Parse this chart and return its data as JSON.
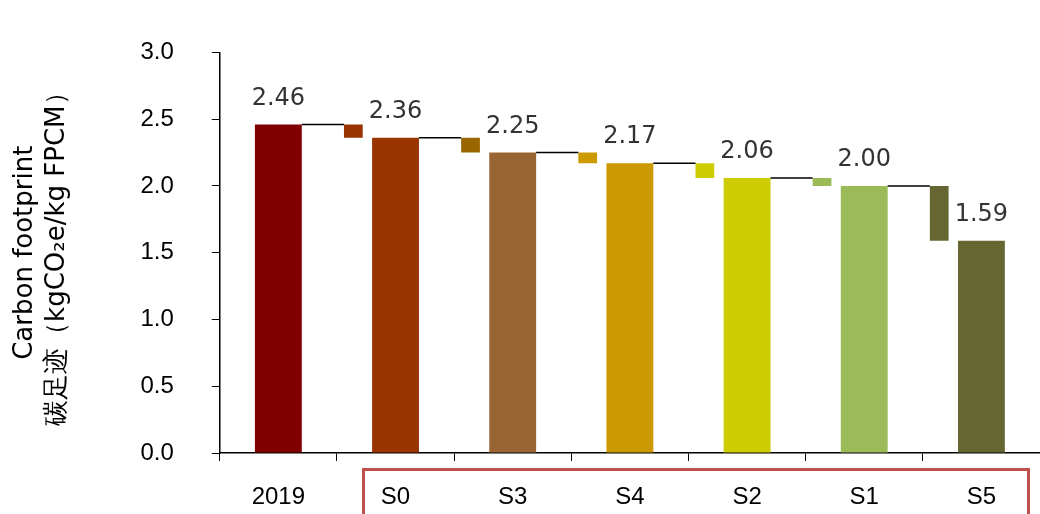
{
  "chart_data": {
    "type": "bar",
    "ylabel": "Carbon footprint\n碳足迹（kgCO₂e/kg FPCM）",
    "categories": [
      "2019",
      "S0",
      "S3",
      "S4",
      "S2",
      "S1",
      "S5"
    ],
    "series": [
      {
        "values": [
          null,
          -0.1,
          -0.11,
          -0.08,
          -0.11,
          -0.06,
          -0.41
        ],
        "base": [
          null,
          2.46,
          2.36,
          2.25,
          2.17,
          2.06,
          2.0
        ],
        "colors": [
          null,
          "#993300",
          "#996600",
          "#cc9900",
          "#cccc00",
          "#9bbb59",
          "#666633"
        ]
      },
      {
        "values": [
          2.46,
          2.36,
          2.25,
          2.17,
          2.06,
          2.0,
          1.59
        ],
        "colors": [
          "#800000",
          "#993300",
          "#996633",
          "#cc9900",
          "#cccc00",
          "#9bbb59",
          "#666633"
        ],
        "value_labels": [
          "2.46",
          "2.36",
          "2.25",
          "2.17",
          "2.06",
          "2.00",
          "1.59"
        ]
      }
    ],
    "ylim": [
      0,
      3
    ],
    "yticks": [
      {
        "value": 0,
        "label": "0.0"
      },
      {
        "value": 0.5,
        "label": "0.5"
      },
      {
        "value": 1,
        "label": "1.0"
      },
      {
        "value": 1.5,
        "label": "1.5"
      },
      {
        "value": 2,
        "label": "2.0"
      },
      {
        "value": 2.5,
        "label": "2.5"
      },
      {
        "value": 3,
        "label": "3.0"
      }
    ],
    "grid": false,
    "legend": false
  }
}
